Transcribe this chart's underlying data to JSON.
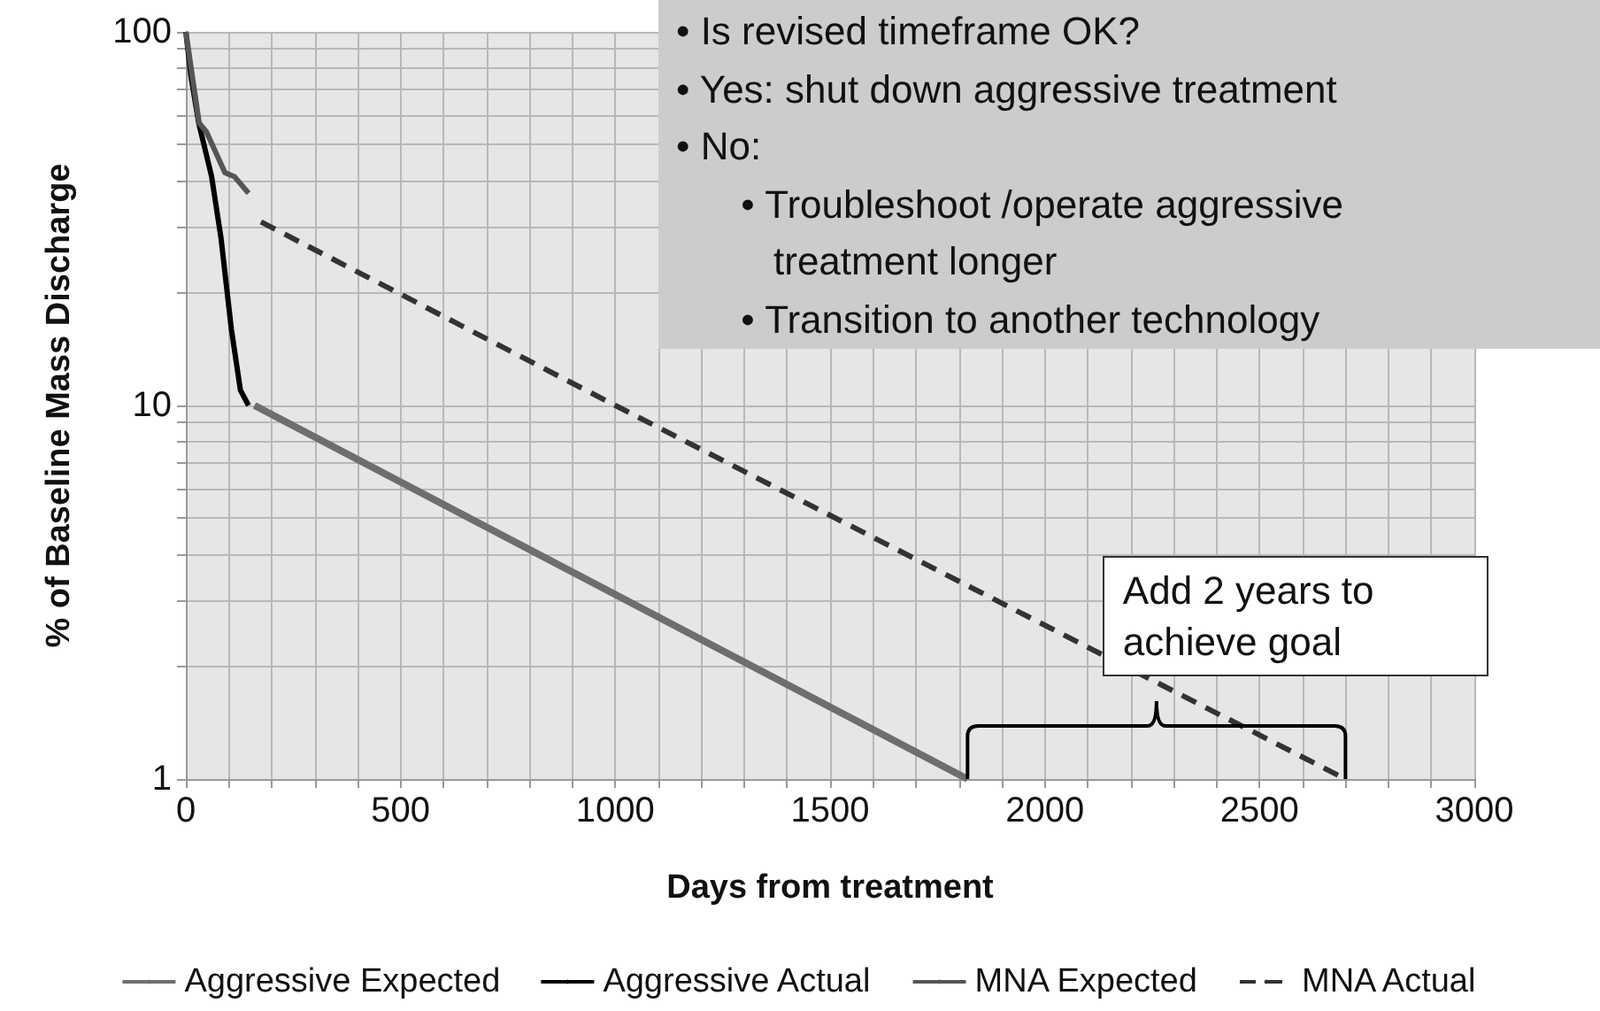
{
  "chart_data": {
    "type": "line",
    "xlabel": "Days from treatment",
    "ylabel": "% of Baseline Mass Discharge",
    "log": "y",
    "grid": true,
    "legend": "bottom",
    "marker": "none",
    "xlim": [
      0,
      3000
    ],
    "ylim": [
      1,
      100
    ],
    "xticks": [
      0,
      {
        "value": 100,
        "label": null
      },
      {
        "value": 200,
        "label": null
      },
      {
        "value": 300,
        "label": null
      },
      {
        "value": 400,
        "label": null
      },
      500,
      {
        "value": 600,
        "label": null
      },
      {
        "value": 700,
        "label": null
      },
      {
        "value": 800,
        "label": null
      },
      {
        "value": 900,
        "label": null
      },
      1000,
      {
        "value": 1100,
        "label": null
      },
      {
        "value": 1200,
        "label": null
      },
      {
        "value": 1300,
        "label": null
      },
      {
        "value": 1400,
        "label": null
      },
      1500,
      {
        "value": 1600,
        "label": null
      },
      {
        "value": 1700,
        "label": null
      },
      {
        "value": 1800,
        "label": null
      },
      {
        "value": 1900,
        "label": null
      },
      2000,
      {
        "value": 2100,
        "label": null
      },
      {
        "value": 2200,
        "label": null
      },
      {
        "value": 2300,
        "label": null
      },
      {
        "value": 2400,
        "label": null
      },
      2500,
      {
        "value": 2600,
        "label": null
      },
      {
        "value": 2700,
        "label": null
      },
      {
        "value": 2800,
        "label": null
      },
      {
        "value": 2900,
        "label": null
      },
      3000
    ],
    "yticks": [
      1,
      {
        "value": 2,
        "label": null
      },
      {
        "value": 3,
        "label": null
      },
      {
        "value": 4,
        "label": null
      },
      {
        "value": 5,
        "label": null
      },
      {
        "value": 6,
        "label": null
      },
      {
        "value": 7,
        "label": null
      },
      {
        "value": 8,
        "label": null
      },
      {
        "value": 9,
        "label": null
      },
      10,
      {
        "value": 20,
        "label": null
      },
      {
        "value": 30,
        "label": null
      },
      {
        "value": 40,
        "label": null
      },
      {
        "value": 50,
        "label": null
      },
      {
        "value": 60,
        "label": null
      },
      {
        "value": 70,
        "label": null
      },
      {
        "value": 80,
        "label": null
      },
      {
        "value": 90,
        "label": null
      },
      100
    ],
    "series": [
      {
        "name": "Aggressive Expected",
        "color": "#6e6e6e",
        "line_style": "solid",
        "x": [
          160,
          1820
        ],
        "values": [
          10,
          1
        ]
      },
      {
        "name": "Aggressive Actual",
        "color": "#000000",
        "line_style": "solid",
        "x": [
          0,
          12,
          30,
          60,
          82,
          106,
          127,
          146
        ],
        "values": [
          100,
          76,
          57,
          41,
          28,
          16,
          11,
          10
        ]
      },
      {
        "name": "MNA Expected",
        "color": "#555555",
        "line_style": "solid",
        "x": [
          0,
          31,
          48,
          91,
          113,
          146
        ],
        "values": [
          100,
          57,
          54,
          42,
          41,
          37
        ]
      },
      {
        "name": "MNA Actual",
        "color": "#333333",
        "line_style": "dashed",
        "x": [
          175,
          1000,
          2700
        ],
        "values": [
          31,
          10,
          1
        ]
      }
    ],
    "annotations": [
      "• Is revised timeframe OK?\n• Yes: shut down aggressive treatment\n• No:\n      • Troubleshoot /operate aggressive\n         treatment longer\n      • Transition to another technology",
      "Add 2 years to achieve goal"
    ]
  }
}
